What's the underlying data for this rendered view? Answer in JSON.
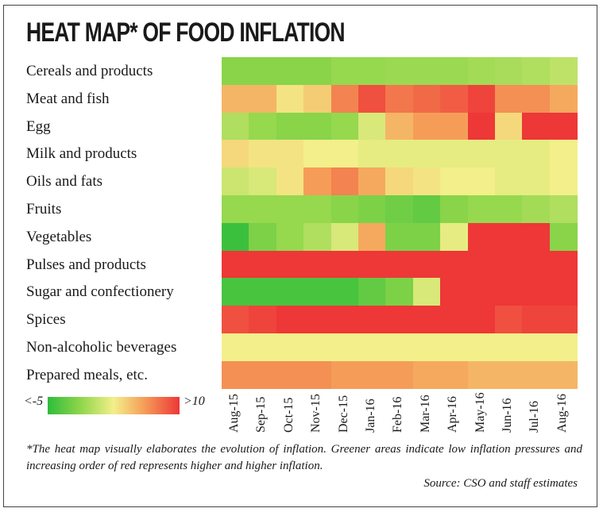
{
  "title": "HEAT MAP* OF FOOD INFLATION",
  "footnote": "*The heat map visually elaborates the evolution of inflation. Greener areas indicate low inflation pressures and increasing order of red represents higher and higher inflation.",
  "source": "Source: CSO and staff estimates",
  "legend": {
    "min_label": "<-5",
    "max_label": ">10",
    "min_value": -5,
    "max_value": 10
  },
  "chart_data": {
    "type": "heatmap",
    "title": "HEAT MAP* OF FOOD INFLATION",
    "x": [
      "Aug-15",
      "Sep-15",
      "Oct-15",
      "Nov-15",
      "Dec-15",
      "Jan-16",
      "Feb-16",
      "Mar-16",
      "Apr-16",
      "May-16",
      "Jun-16",
      "Jul-16",
      "Aug-16"
    ],
    "y": [
      "Cereals and products",
      "Meat and fish",
      "Egg",
      "Milk and products",
      "Oils and fats",
      "Fruits",
      "Vegetables",
      "Pulses and products",
      "Sugar and confectionery",
      "Spices",
      "Non-alcoholic beverages",
      "Prepared meals, etc."
    ],
    "values": [
      [
        -1.5,
        -1.5,
        -1.5,
        -1.5,
        -1,
        -1,
        -0.8,
        -0.8,
        -0.8,
        -0.5,
        -0.3,
        0,
        0.5
      ],
      [
        5,
        5,
        3,
        4,
        7,
        9,
        7.5,
        8,
        8.5,
        9.5,
        6.5,
        6.5,
        5.5
      ],
      [
        0,
        -1,
        -1.5,
        -1.5,
        -1,
        1.5,
        5,
        6,
        6,
        10,
        3.5,
        10,
        10
      ],
      [
        3.5,
        3,
        3,
        2.5,
        2.5,
        2,
        2,
        2,
        2,
        2,
        2,
        2,
        2.5
      ],
      [
        1,
        1.5,
        3,
        6,
        7,
        5.5,
        3.5,
        3,
        2.5,
        2.5,
        2,
        2,
        2.5
      ],
      [
        -1,
        -1,
        -1,
        -1,
        -1.5,
        -2,
        -2.5,
        -3,
        -1.5,
        -1,
        -1,
        -0.5,
        0
      ],
      [
        -4.5,
        -2,
        -1,
        0,
        1.5,
        5.5,
        -2,
        -2,
        2,
        10,
        10,
        10,
        -1.5
      ],
      [
        10,
        10,
        10,
        10,
        10,
        10,
        10,
        10,
        10,
        10,
        10,
        10,
        10
      ],
      [
        -4,
        -4,
        -4,
        -4,
        -4,
        -3,
        -2,
        1.5,
        10,
        10,
        10,
        10,
        10
      ],
      [
        9,
        9.5,
        10,
        10,
        10,
        10,
        10,
        10,
        10,
        10,
        9,
        9.5,
        9.5
      ],
      [
        2.5,
        2.5,
        2.5,
        2.5,
        2.5,
        2.5,
        2.5,
        2.5,
        2.5,
        2.5,
        2.5,
        2.5,
        2.5
      ],
      [
        6.5,
        6.5,
        6.5,
        6.5,
        6,
        6,
        6,
        5.5,
        5.5,
        5,
        5,
        5,
        5
      ]
    ],
    "zlim": [
      -5,
      10
    ]
  }
}
